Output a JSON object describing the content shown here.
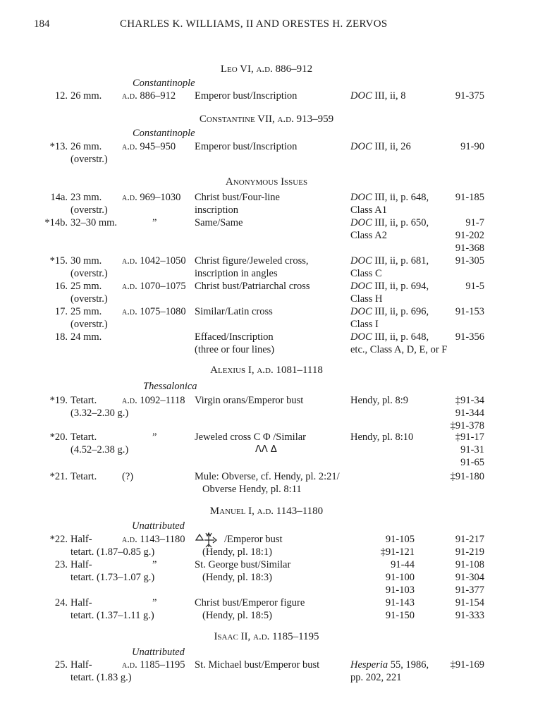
{
  "header": {
    "page_number": "184",
    "title": "CHARLES K. WILLIAMS, II AND ORESTES H. ZERVOS"
  },
  "lines": [
    {
      "heading": "Leo VI, a.d. 886–912"
    },
    {
      "mint": "Constantinople"
    },
    {
      "num": "12.",
      "size": "26 mm.",
      "date": "a.d. 886–912",
      "desc": "Emperor bust/Inscription",
      "ref": "DOC III, ii, 8",
      "inv": "91-375"
    },
    {
      "heading": "Constantine VII, a.d. 913–959"
    },
    {
      "mint": "Constantinople"
    },
    {
      "num": "*13.",
      "size": "26 mm.",
      "date": "a.d. 945–950",
      "desc": "Emperor bust/Inscription",
      "ref": "DOC III, ii, 26",
      "inv": "91-90"
    },
    {
      "size": "(overstr.)"
    },
    {
      "heading": "Anonymous Issues"
    },
    {
      "num": "14a.",
      "size": "23 mm.",
      "date": "a.d. 969–1030",
      "desc": "Christ bust/Four-line",
      "ref": "DOC III, ii, p. 648,",
      "inv": "91-185"
    },
    {
      "size": "(overstr.)",
      "desc": "inscription",
      "ref": "Class A1"
    },
    {
      "num": "*14b.",
      "size": "32–30 mm.",
      "date": "”",
      "desc": "Same/Same",
      "ref": "DOC III, ii, p. 650,",
      "inv": "91-7"
    },
    {
      "ref": "Class A2",
      "inv": "91-202"
    },
    {
      "inv": "91-368"
    },
    {
      "num": "*15.",
      "size": "30 mm.",
      "date": "a.d. 1042–1050",
      "desc": "Christ figure/Jeweled cross,",
      "ref": "DOC III, ii, p. 681,",
      "inv": "91-305"
    },
    {
      "size": "(overstr.)",
      "desc": "inscription in angles",
      "ref": "Class C"
    },
    {
      "num": "16.",
      "size": "25 mm.",
      "date": "a.d. 1070–1075",
      "desc": "Christ bust/Patriarchal cross",
      "ref": "DOC III, ii, p. 694,",
      "inv": "91-5"
    },
    {
      "size": "(overstr.)",
      "ref": "Class H"
    },
    {
      "num": "17.",
      "size": "25 mm.",
      "date": "a.d. 1075–1080",
      "desc": "Similar/Latin cross",
      "ref": "DOC III, ii, p. 696,",
      "inv": "91-153"
    },
    {
      "size": "(overstr.)",
      "ref": "Class I"
    },
    {
      "num": "18.",
      "size": "24 mm.",
      "desc": "Effaced/Inscription",
      "ref": "DOC III, ii, p. 648,",
      "inv": "91-356"
    },
    {
      "desc": "(three or four lines)",
      "ref": "etc., Class A, D, E, or F"
    },
    {
      "heading": "Alexius I, a.d. 1081–1118"
    },
    {
      "mint": "Thessalonica"
    },
    {
      "num": "*19.",
      "size": "Tetart.",
      "date": "a.d. 1092–1118",
      "desc": "Virgin orans/Emperor bust",
      "ref": "Hendy, pl. 8:9",
      "inv": "‡91-34"
    },
    {
      "size": "(3.32–2.30 g.)",
      "inv": "91-344"
    },
    {
      "inv": "‡91-378"
    },
    {
      "num": "*20.",
      "size": "Tetart.",
      "date": "”",
      "desc": "Jeweled cross  C  Φ /Similar",
      "ref": "Hendy, pl. 8:10",
      "inv": "‡91-17"
    },
    {
      "size": "(4.52–2.38 g.)",
      "sym": "ΛΛ  Δ",
      "inv": "91-31"
    },
    {
      "inv": "91-65"
    },
    {
      "num": "*21.",
      "size": "Tetart.",
      "date": "(?)",
      "desc": "Mule: Obverse, cf. Hendy, pl. 2:21/",
      "inv": "‡91-180"
    },
    {
      "desc": "Obverse Hendy, pl. 8:11"
    },
    {
      "heading": "Manuel I, a.d. 1143–1180"
    },
    {
      "mint": "Unattributed"
    },
    {
      "num": "*22.",
      "size": "Half-",
      "date": "a.d. 1143–1180",
      "desc": "/Emperor bust",
      "monogram": "monogram-icon",
      "ref2": "91-105",
      "inv": "91-217"
    },
    {
      "size": "tetart. (1.87–0.85 g.)",
      "desc": "(Hendy, pl. 18:1)",
      "ref2": "‡91-121",
      "inv": "91-219"
    },
    {
      "num": "23.",
      "size": "Half-",
      "date": "”",
      "desc": "St. George bust/Similar",
      "ref2": "91-44",
      "inv": "91-108"
    },
    {
      "size": "tetart. (1.73–1.07 g.)",
      "desc": "(Hendy, pl. 18:3)",
      "ref2": "91-100",
      "inv": "91-304"
    },
    {
      "ref2": "91-103",
      "inv": "91-377"
    },
    {
      "num": "24.",
      "size": "Half-",
      "date": "”",
      "desc": "Christ bust/Emperor figure",
      "ref2": "91-143",
      "inv": "91-154"
    },
    {
      "size": "tetart. (1.37–1.11 g.)",
      "desc": "(Hendy, pl. 18:5)",
      "ref2": "91-150",
      "inv": "91-333"
    },
    {
      "heading": "Isaac II, a.d. 1185–1195"
    },
    {
      "mint": "Unattributed"
    },
    {
      "num": "25.",
      "size": "Half-",
      "date": "a.d. 1185–1195",
      "desc": "St. Michael bust/Emperor bust",
      "ref": "Hesperia 55, 1986,",
      "inv": "‡91-169"
    },
    {
      "size": "tetart. (1.83 g.)",
      "ref": "pp. 202, 221"
    }
  ]
}
